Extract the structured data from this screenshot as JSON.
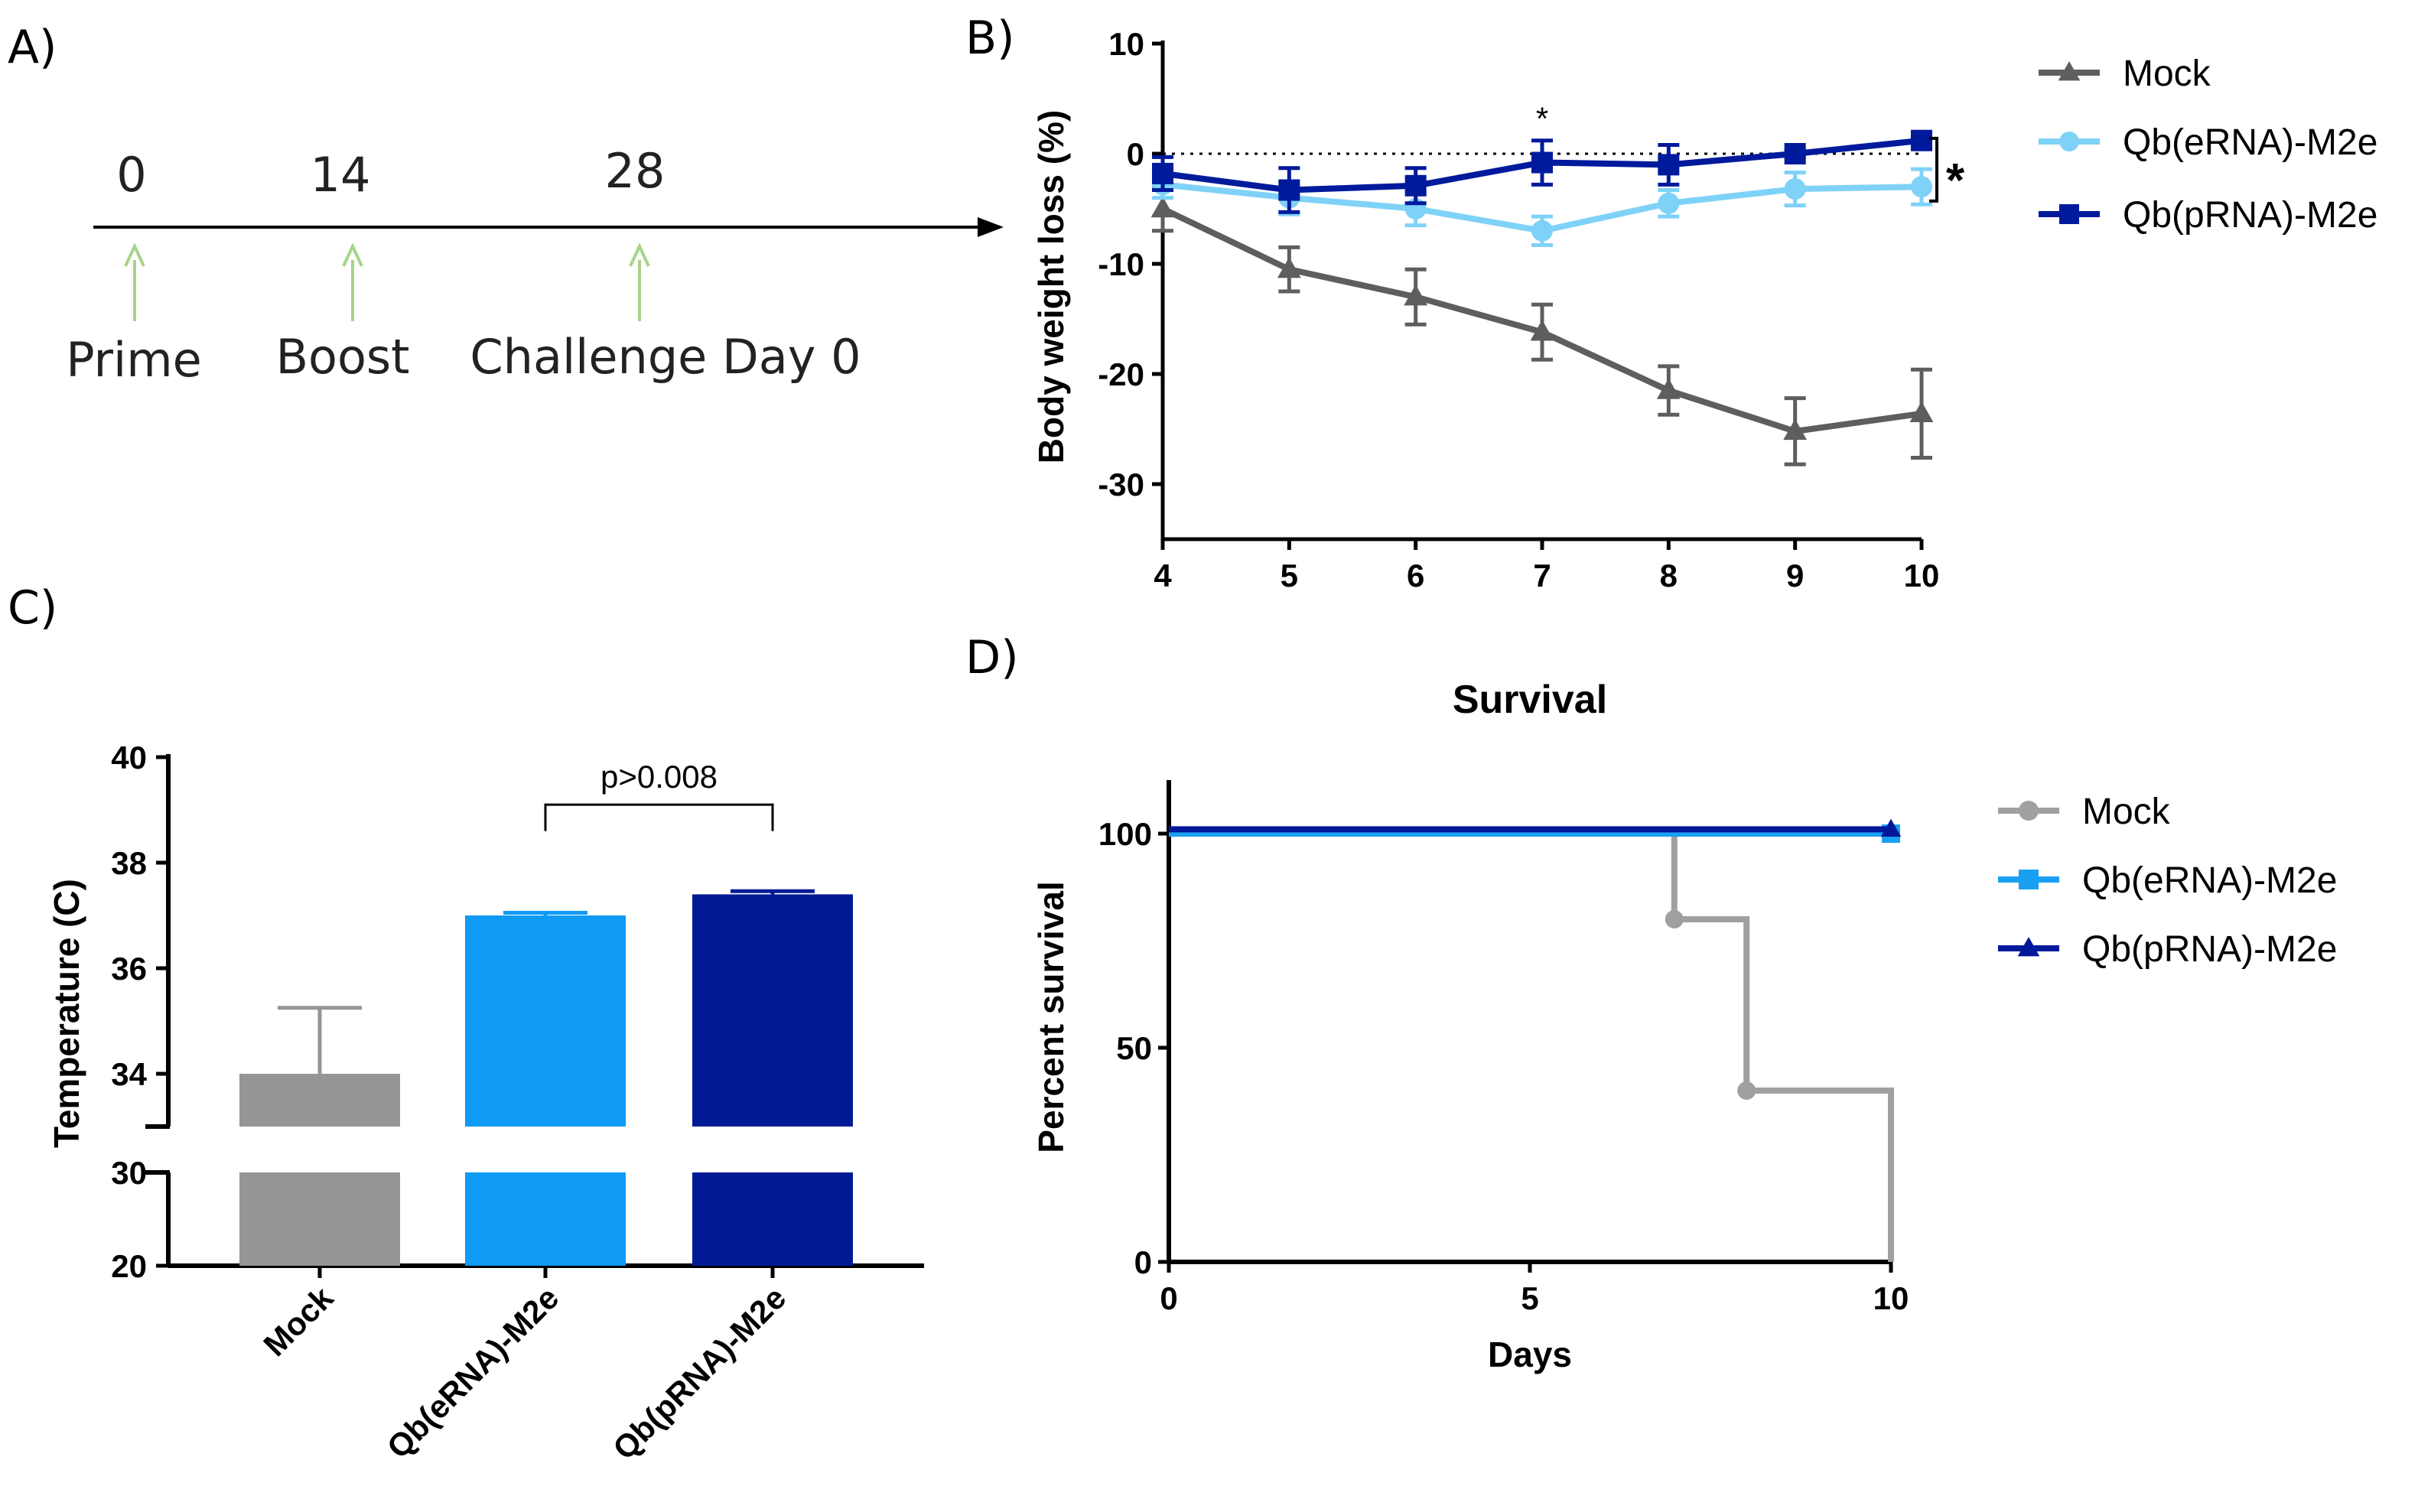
{
  "panels": {
    "a": {
      "label": "A)"
    },
    "b": {
      "label": "B)"
    },
    "c": {
      "label": "C)"
    },
    "d": {
      "label": "D)"
    }
  },
  "timeline": {
    "events": [
      {
        "day": "0",
        "label": "Prime"
      },
      {
        "day": "14",
        "label": "Boost"
      },
      {
        "day": "28",
        "label": "Challenge Day 0"
      }
    ],
    "arrow_color": "#a6d48b"
  },
  "chart_data": [
    {
      "id": "body-weight",
      "type": "line",
      "title": "",
      "xlabel": "",
      "ylabel": "Body weight loss (%)",
      "xlim": [
        4,
        10
      ],
      "ylim": [
        -35,
        10
      ],
      "x_ticks": [
        "4",
        "5",
        "6",
        "7",
        "8",
        "9",
        "10"
      ],
      "y_ticks": [
        "10",
        "0",
        "-10",
        "-20",
        "-30"
      ],
      "x": [
        4,
        5,
        6,
        7,
        8,
        9,
        10
      ],
      "reference_line": 0,
      "series": [
        {
          "name": "Mock",
          "color": "#5e5e5e",
          "marker": "triangle",
          "values": [
            -5,
            -10.5,
            -13,
            -16.2,
            -21.5,
            -25.2,
            -23.6
          ],
          "errors": [
            2,
            2,
            2.5,
            2.5,
            2.2,
            3,
            4
          ]
        },
        {
          "name": "Qb(eRNA)-M2e",
          "color": "#7fd2f7",
          "marker": "circle",
          "values": [
            -2.8,
            -4,
            -5,
            -7,
            -4.5,
            -3.2,
            -3
          ],
          "errors": [
            1.2,
            1.5,
            1.5,
            1.3,
            1.2,
            1.5,
            1.6
          ]
        },
        {
          "name": "Qb(pRNA)-M2e",
          "color": "#001a9c",
          "marker": "square",
          "values": [
            -1.8,
            -3.3,
            -2.9,
            -0.8,
            -1,
            0,
            1.2
          ],
          "errors": [
            1.5,
            2,
            1.6,
            2,
            1.8,
            0.3,
            0.3
          ]
        }
      ],
      "annotations": {
        "point_star": "*",
        "bracket_star": "*"
      }
    },
    {
      "id": "temperature",
      "type": "bar",
      "ylabel": "Temperature (C)",
      "categories": [
        "Mock",
        "Qb(eRNA)-M2e",
        "Qb(pRNA)-M2e"
      ],
      "values": [
        34,
        37,
        37.4
      ],
      "errors": [
        1.25,
        0.05,
        0.06
      ],
      "colors": [
        "#959595",
        "#0f9bf4",
        "#001a96"
      ],
      "y_ticks_upper": [
        "34",
        "36",
        "38",
        "40"
      ],
      "y_ticks_lower": [
        "20",
        "30"
      ],
      "axis_break": [
        30,
        33
      ],
      "ylim": [
        20,
        40
      ],
      "significance": {
        "label": "p>0.008",
        "between": [
          "Qb(eRNA)-M2e",
          "Qb(pRNA)-M2e"
        ]
      }
    },
    {
      "id": "survival",
      "type": "line",
      "title": "Survival",
      "xlabel": "Days",
      "ylabel": "Percent survival",
      "xlim": [
        0,
        10
      ],
      "ylim": [
        0,
        100
      ],
      "x_ticks": [
        "0",
        "5",
        "10"
      ],
      "y_ticks": [
        "0",
        "50",
        "100"
      ],
      "series": [
        {
          "name": "Mock",
          "color": "#a0a0a0",
          "marker": "circle",
          "steps": [
            [
              0,
              100
            ],
            [
              7,
              100
            ],
            [
              7,
              80
            ],
            [
              8,
              80
            ],
            [
              8,
              40
            ],
            [
              10,
              40
            ],
            [
              10,
              0
            ]
          ],
          "points": [
            [
              7,
              80
            ],
            [
              8,
              40
            ]
          ]
        },
        {
          "name": "Qb(eRNA)-M2e",
          "color": "#1aa0f2",
          "marker": "square",
          "steps": [
            [
              0,
              100
            ],
            [
              10,
              100
            ]
          ],
          "points": [
            [
              10,
              100
            ]
          ]
        },
        {
          "name": "Qb(pRNA)-M2e",
          "color": "#00189a",
          "marker": "triangle",
          "steps": [
            [
              0,
              101
            ],
            [
              10,
              101
            ]
          ],
          "points": [
            [
              10,
              101
            ]
          ]
        }
      ]
    }
  ]
}
